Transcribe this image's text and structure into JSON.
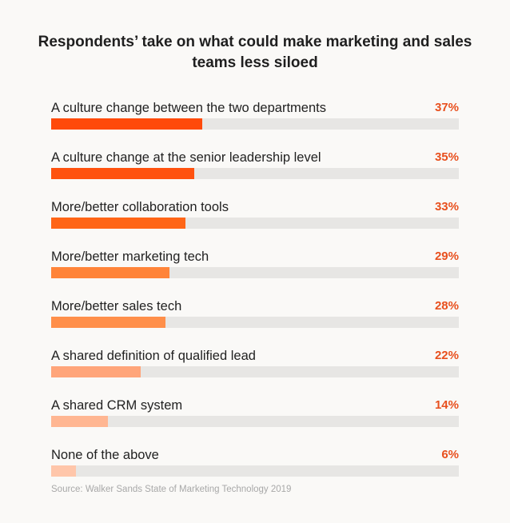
{
  "chart_data": {
    "type": "bar",
    "orientation": "horizontal",
    "title": "Respondents’ take on what could make marketing and sales teams less siloed",
    "categories": [
      "A culture change between the two departments",
      "A culture change at the senior leadership level",
      "More/better collaboration tools",
      "More/better marketing tech",
      "More/better sales tech",
      "A shared definition of qualified lead",
      "A shared CRM system",
      "None of the above"
    ],
    "values": [
      37,
      35,
      33,
      29,
      28,
      22,
      14,
      6
    ],
    "value_labels": [
      "37%",
      "35%",
      "33%",
      "29%",
      "28%",
      "22%",
      "14%",
      "6%"
    ],
    "xlim": [
      0,
      100
    ],
    "grid": false,
    "legend": "none",
    "source": "Source: Walker Sands State of Marketing Technology 2019"
  },
  "colors": {
    "bars": [
      "#ff4a0a",
      "#ff520f",
      "#ff6516",
      "#ff8439",
      "#ff8f4a",
      "#ffa57a",
      "#ffb692",
      "#ffc6aa"
    ],
    "track": "#e7e6e4",
    "percent_text": "#e8501e",
    "background": "#faf9f7"
  }
}
